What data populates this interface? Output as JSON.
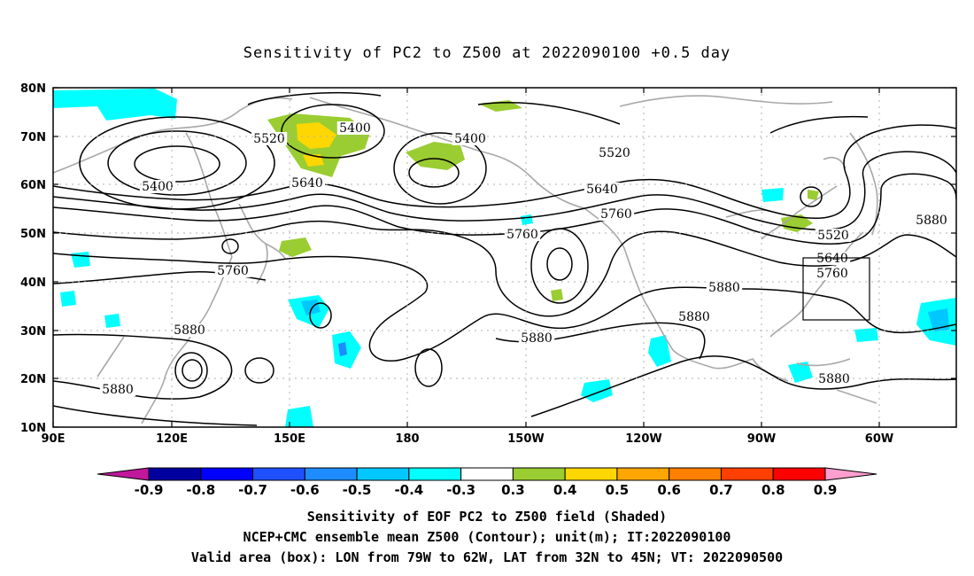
{
  "title": "Sensitivity of PC2 to Z500 at 2022090100 +0.5 day",
  "lat_labels": [
    "80N",
    "70N",
    "60N",
    "50N",
    "40N",
    "30N",
    "20N",
    "10N"
  ],
  "lon_labels": [
    "90E",
    "120E",
    "150E",
    "180",
    "150W",
    "120W",
    "90W",
    "60W"
  ],
  "contour_labels": [
    {
      "text": "5400"
    },
    {
      "text": "5400"
    },
    {
      "text": "5400"
    },
    {
      "text": "5520"
    },
    {
      "text": "5520"
    },
    {
      "text": "5520"
    },
    {
      "text": "5640"
    },
    {
      "text": "5640"
    },
    {
      "text": "5640"
    },
    {
      "text": "5760"
    },
    {
      "text": "5760"
    },
    {
      "text": "5760"
    },
    {
      "text": "5760"
    },
    {
      "text": "5880"
    },
    {
      "text": "5880"
    },
    {
      "text": "5880"
    },
    {
      "text": "5880"
    },
    {
      "text": "5880"
    },
    {
      "text": "5880"
    },
    {
      "text": "5880"
    }
  ],
  "colorbar": {
    "labels": [
      "-0.9",
      "-0.8",
      "-0.7",
      "-0.6",
      "-0.5",
      "-0.4",
      "-0.3",
      "0.3",
      "0.4",
      "0.5",
      "0.6",
      "0.7",
      "0.8",
      "0.9"
    ],
    "colors": [
      "#0000a0",
      "#0000ff",
      "#1e50ff",
      "#1e8cff",
      "#00c8ff",
      "#00ffff",
      "#ffffff",
      "#9acd32",
      "#ffd700",
      "#ffa500",
      "#ff7f00",
      "#ff4000",
      "#ff0000"
    ],
    "low_extend_color": "#c0189c",
    "high_extend_color": "#ff9fcf"
  },
  "caption": [
    "Sensitivity of EOF PC2 to Z500 field (Shaded)",
    "NCEP+CMC ensemble mean Z500 (Contour); unit(m); IT:2022090100",
    "Valid area (box): LON from 79W to 62W, LAT from 32N to 45N; VT: 2022090500"
  ]
}
